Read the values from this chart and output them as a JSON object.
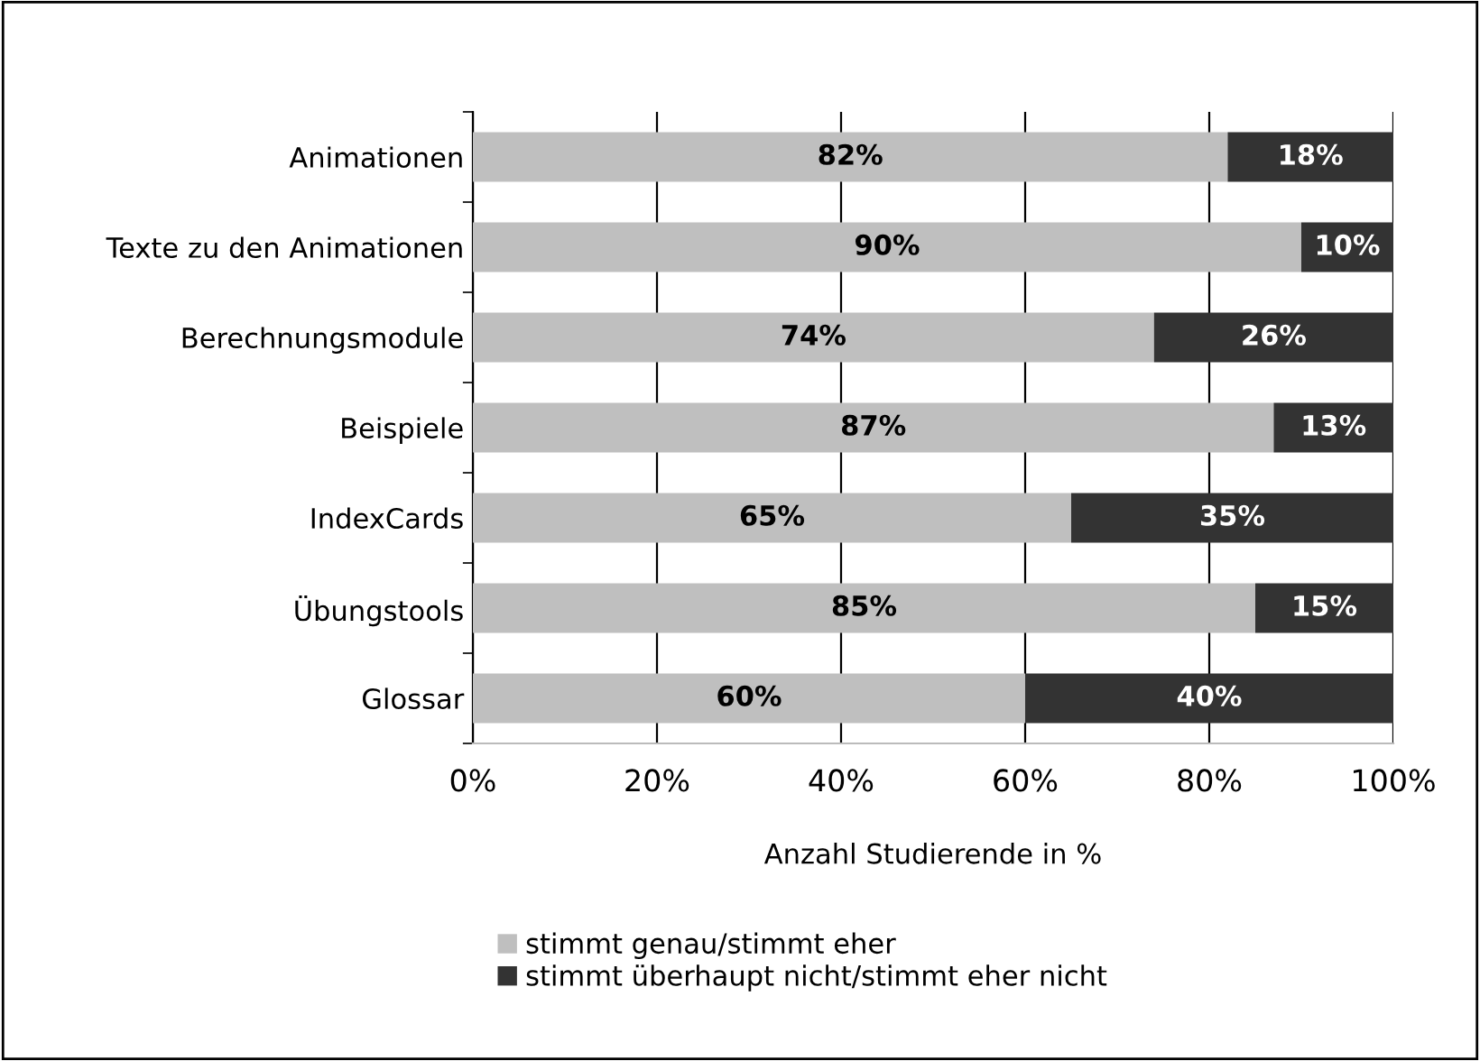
{
  "chart_data": {
    "type": "bar",
    "orientation": "horizontal",
    "stacked": true,
    "categories": [
      "Animationen",
      "Texte zu den Animationen",
      "Berechnungsmodule",
      "Beispiele",
      "IndexCards",
      "Übungstools",
      "Glossar"
    ],
    "series": [
      {
        "name": "stimmt genau/stimmt eher",
        "color": "#bfbfbf",
        "values": [
          82,
          90,
          74,
          87,
          65,
          85,
          60
        ],
        "value_labels": [
          "82%",
          "90%",
          "74%",
          "87%",
          "65%",
          "85%",
          "60%"
        ]
      },
      {
        "name": "stimmt überhaupt nicht/stimmt eher nicht",
        "color": "#333333",
        "values": [
          18,
          10,
          26,
          13,
          35,
          15,
          40
        ],
        "value_labels": [
          "18%",
          "10%",
          "26%",
          "13%",
          "35%",
          "15%",
          "40%"
        ]
      }
    ],
    "xlim": [
      0,
      100
    ],
    "xticks": [
      {
        "value": 0,
        "label": "0%"
      },
      {
        "value": 20,
        "label": "20%"
      },
      {
        "value": 40,
        "label": "40%"
      },
      {
        "value": 60,
        "label": "60%"
      },
      {
        "value": 80,
        "label": "80%"
      },
      {
        "value": 100,
        "label": "100%"
      }
    ],
    "xlabel": "Anzahl Studierende in %",
    "grid": "x",
    "legend": "bottom"
  }
}
